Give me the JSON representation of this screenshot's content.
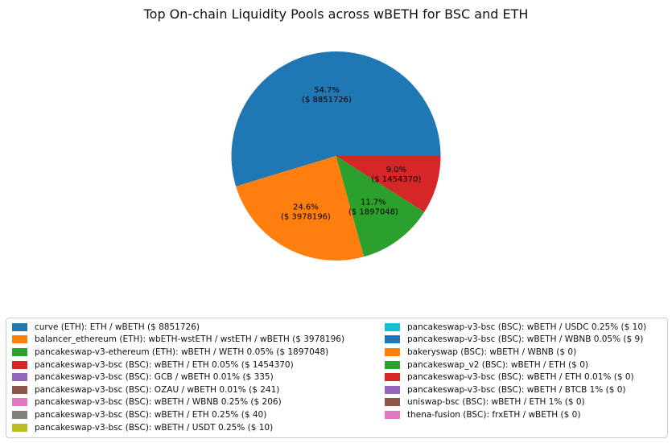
{
  "title": "Top On-chain Liquidity Pools across wBETH for BSC and ETH",
  "chart_data": {
    "type": "pie",
    "title": "Top On-chain Liquidity Pools across wBETH for BSC and ETH",
    "legend_position": "bottom",
    "legend_columns": 2,
    "value_unit": "USD",
    "slices": [
      {
        "label": "curve (ETH): ETH / wBETH ($ 8851726)",
        "value_usd": 8851726,
        "pct": 54.7,
        "pct_label": "54.7%",
        "value_label": "($ 8851726)",
        "color": "#1f77b4"
      },
      {
        "label": "balancer_ethereum (ETH): wbETH-wstETH / wstETH / wBETH ($ 3978196)",
        "value_usd": 3978196,
        "pct": 24.6,
        "pct_label": "24.6%",
        "value_label": "($ 3978196)",
        "color": "#ff7f0e"
      },
      {
        "label": "pancakeswap-v3-ethereum (ETH): wBETH / WETH 0.05% ($ 1897048)",
        "value_usd": 1897048,
        "pct": 11.7,
        "pct_label": "11.7%",
        "value_label": "($ 1897048)",
        "color": "#2ca02c"
      },
      {
        "label": "pancakeswap-v3-bsc (BSC): wBETH / ETH 0.05% ($ 1454370)",
        "value_usd": 1454370,
        "pct": 9.0,
        "pct_label": "9.0%",
        "value_label": "($ 1454370)",
        "color": "#d62728"
      },
      {
        "label": "pancakeswap-v3-bsc (BSC): GCB / wBETH 0.01% ($ 335)",
        "value_usd": 335,
        "pct": 0,
        "pct_label": null,
        "value_label": null,
        "color": "#9467bd"
      },
      {
        "label": "pancakeswap-v3-bsc (BSC): OZAU / wBETH 0.01% ($ 241)",
        "value_usd": 241,
        "pct": 0,
        "pct_label": null,
        "value_label": null,
        "color": "#8c564b"
      },
      {
        "label": "pancakeswap-v3-bsc (BSC): wBETH / WBNB 0.25% ($ 206)",
        "value_usd": 206,
        "pct": 0,
        "pct_label": null,
        "value_label": null,
        "color": "#e377c2"
      },
      {
        "label": "pancakeswap-v3-bsc (BSC): wBETH / ETH 0.25% ($ 40)",
        "value_usd": 40,
        "pct": 0,
        "pct_label": null,
        "value_label": null,
        "color": "#7f7f7f"
      },
      {
        "label": "pancakeswap-v3-bsc (BSC): wBETH / USDT 0.25% ($ 10)",
        "value_usd": 10,
        "pct": 0,
        "pct_label": null,
        "value_label": null,
        "color": "#bcbd22"
      },
      {
        "label": "pancakeswap-v3-bsc (BSC): wBETH / USDC 0.25% ($ 10)",
        "value_usd": 10,
        "pct": 0,
        "pct_label": null,
        "value_label": null,
        "color": "#17becf"
      },
      {
        "label": "pancakeswap-v3-bsc (BSC): wBETH / WBNB 0.05% ($ 9)",
        "value_usd": 9,
        "pct": 0,
        "pct_label": null,
        "value_label": null,
        "color": "#1f77b4"
      },
      {
        "label": "bakeryswap (BSC): wBETH / WBNB ($ 0)",
        "value_usd": 0,
        "pct": 0,
        "pct_label": null,
        "value_label": null,
        "color": "#ff7f0e"
      },
      {
        "label": "pancakeswap_v2 (BSC): wBETH / ETH ($ 0)",
        "value_usd": 0,
        "pct": 0,
        "pct_label": null,
        "value_label": null,
        "color": "#2ca02c"
      },
      {
        "label": "pancakeswap-v3-bsc (BSC): wBETH / ETH 0.01% ($ 0)",
        "value_usd": 0,
        "pct": 0,
        "pct_label": null,
        "value_label": null,
        "color": "#d62728"
      },
      {
        "label": "pancakeswap-v3-bsc (BSC): wBETH / BTCB 1% ($ 0)",
        "value_usd": 0,
        "pct": 0,
        "pct_label": null,
        "value_label": null,
        "color": "#9467bd"
      },
      {
        "label": "uniswap-bsc (BSC): wBETH / ETH 1% ($ 0)",
        "value_usd": 0,
        "pct": 0,
        "pct_label": null,
        "value_label": null,
        "color": "#8c564b"
      },
      {
        "label": "thena-fusion (BSC): frxETH / wBETH ($ 0)",
        "value_usd": 0,
        "pct": 0,
        "pct_label": null,
        "value_label": null,
        "color": "#e377c2"
      }
    ]
  }
}
